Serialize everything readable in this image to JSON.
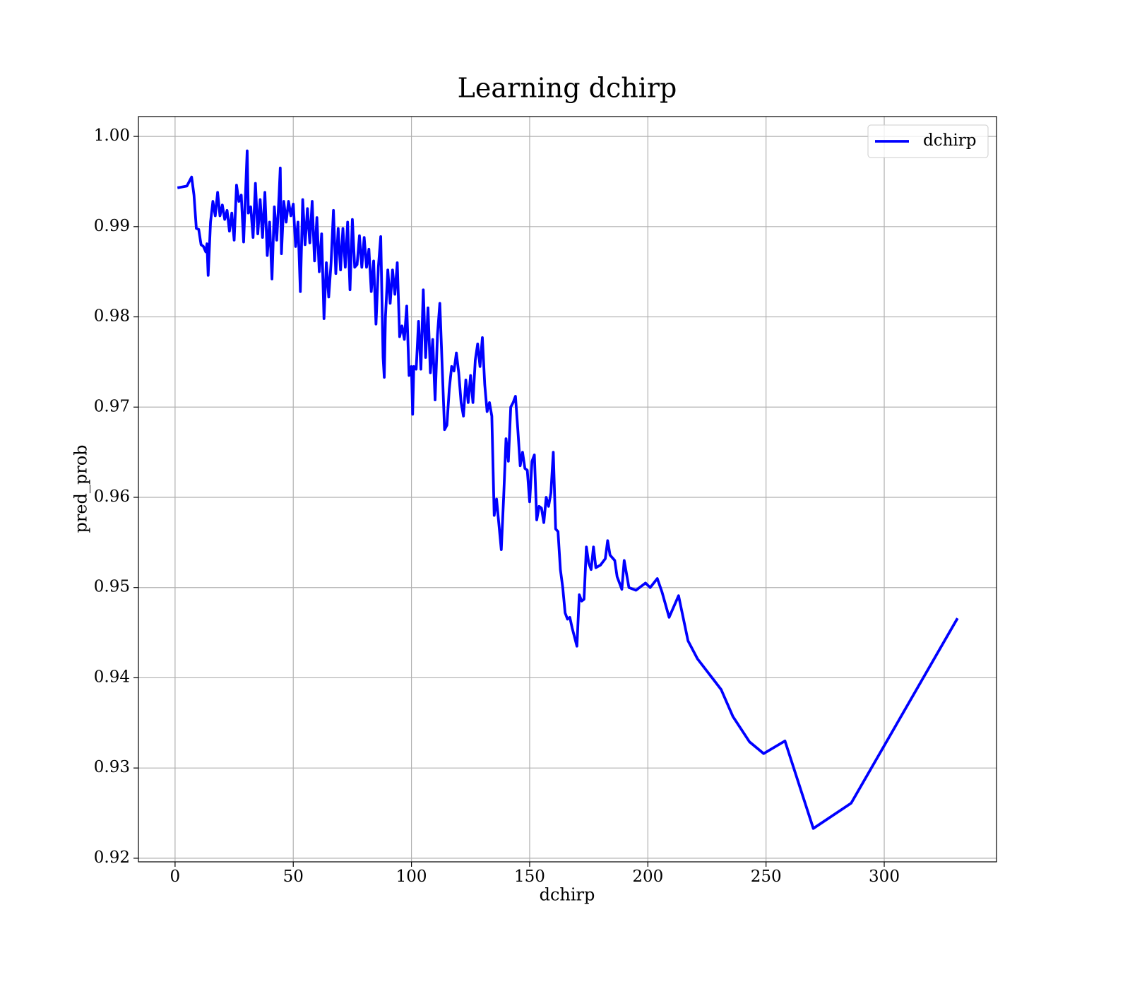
{
  "chart_data": {
    "type": "line",
    "title": "Learning dchirp",
    "xlabel": "dchirp",
    "ylabel": "pred_prob",
    "xlim": [
      -15.5,
      347.5
    ],
    "ylim": [
      0.9196,
      1.0022
    ],
    "xticks": [
      0,
      50,
      100,
      150,
      200,
      250,
      300
    ],
    "yticks": [
      0.92,
      0.93,
      0.94,
      0.95,
      0.96,
      0.97,
      0.98,
      0.99,
      {
        "value": 1,
        "label": "1.00"
      }
    ],
    "grid": true,
    "legend": "upper right",
    "series": [
      {
        "name": "dchirp",
        "color": "#0000ff",
        "x": [
          1,
          5,
          7,
          8,
          9,
          10,
          11,
          12,
          13,
          13.5,
          14,
          15,
          16,
          17,
          18,
          19,
          20,
          21,
          22,
          23,
          24,
          25,
          26,
          27,
          28,
          29,
          30,
          30.5,
          31,
          32,
          33,
          34,
          35,
          36,
          37,
          38,
          39,
          40,
          41,
          42,
          43,
          44,
          44.5,
          45,
          46,
          47,
          48,
          49,
          50,
          51,
          52,
          53,
          54,
          55,
          56,
          57,
          58,
          59,
          60,
          61,
          62,
          63,
          64,
          65,
          66,
          67,
          68,
          69,
          70,
          71,
          72,
          73,
          74,
          75,
          76,
          77,
          78,
          79,
          80,
          81,
          82,
          83,
          84,
          85,
          86,
          87,
          88,
          88.5,
          89,
          90,
          91,
          92,
          93,
          94,
          95,
          96,
          97,
          98,
          99,
          100,
          100.5,
          101,
          102,
          103,
          104,
          105,
          106,
          107,
          108,
          109,
          110,
          111,
          112,
          113,
          114,
          115,
          116,
          117,
          118,
          119,
          120,
          121,
          122,
          123,
          124,
          125,
          126,
          127,
          128,
          129,
          130,
          131,
          132,
          133,
          134,
          135,
          136,
          137,
          138,
          139,
          140,
          141,
          142,
          143,
          144,
          145,
          146,
          147,
          148,
          149,
          150,
          151,
          152,
          153,
          154,
          155,
          156,
          157,
          158,
          159,
          160,
          161,
          162,
          163,
          164,
          165,
          166,
          167,
          168,
          170,
          171,
          172,
          173,
          174,
          175,
          176,
          177,
          178,
          180,
          182,
          183,
          184,
          186,
          187,
          189,
          190,
          192,
          195,
          199,
          201,
          204,
          206,
          209,
          213,
          217,
          221,
          231,
          236,
          243,
          249,
          258,
          270,
          286,
          331
        ],
        "values": [
          0.9943,
          0.9945,
          0.9955,
          0.9935,
          0.9898,
          0.9897,
          0.988,
          0.9878,
          0.9872,
          0.9881,
          0.9846,
          0.9905,
          0.9928,
          0.9912,
          0.9938,
          0.9912,
          0.9924,
          0.9908,
          0.9918,
          0.9895,
          0.9915,
          0.9885,
          0.9946,
          0.9928,
          0.9935,
          0.9883,
          0.995,
          0.9984,
          0.9915,
          0.9922,
          0.9888,
          0.9948,
          0.9892,
          0.993,
          0.9888,
          0.9938,
          0.9868,
          0.9905,
          0.9842,
          0.9922,
          0.9885,
          0.9935,
          0.9965,
          0.987,
          0.9928,
          0.9905,
          0.9928,
          0.9912,
          0.9925,
          0.9878,
          0.9905,
          0.9828,
          0.993,
          0.988,
          0.992,
          0.9882,
          0.9928,
          0.9862,
          0.991,
          0.985,
          0.9892,
          0.9798,
          0.986,
          0.9822,
          0.986,
          0.9918,
          0.9848,
          0.9898,
          0.9852,
          0.9898,
          0.9855,
          0.9905,
          0.983,
          0.9908,
          0.9855,
          0.9858,
          0.989,
          0.9855,
          0.9888,
          0.9855,
          0.9875,
          0.9828,
          0.9862,
          0.9792,
          0.9855,
          0.9889,
          0.9755,
          0.9733,
          0.98,
          0.9852,
          0.9815,
          0.9852,
          0.9825,
          0.986,
          0.9778,
          0.979,
          0.9775,
          0.9812,
          0.9735,
          0.9745,
          0.9692,
          0.9745,
          0.9742,
          0.9795,
          0.9742,
          0.983,
          0.9755,
          0.981,
          0.9738,
          0.9775,
          0.9708,
          0.978,
          0.9815,
          0.9745,
          0.9675,
          0.968,
          0.972,
          0.9745,
          0.974,
          0.976,
          0.9738,
          0.9705,
          0.969,
          0.973,
          0.9705,
          0.9735,
          0.9705,
          0.9752,
          0.977,
          0.9745,
          0.9777,
          0.9725,
          0.9695,
          0.9705,
          0.969,
          0.958,
          0.9598,
          0.957,
          0.9542,
          0.96,
          0.9665,
          0.964,
          0.97,
          0.9705,
          0.9712,
          0.9675,
          0.9635,
          0.965,
          0.9632,
          0.963,
          0.9595,
          0.964,
          0.9647,
          0.9575,
          0.959,
          0.9588,
          0.9572,
          0.96,
          0.959,
          0.9605,
          0.965,
          0.9565,
          0.9562,
          0.952,
          0.95,
          0.9472,
          0.9465,
          0.9467,
          0.9455,
          0.9435,
          0.9492,
          0.9485,
          0.9487,
          0.9545,
          0.9527,
          0.952,
          0.9545,
          0.9522,
          0.9525,
          0.9532,
          0.9552,
          0.9536,
          0.953,
          0.9512,
          0.9498,
          0.953,
          0.95,
          0.9497,
          0.9505,
          0.95,
          0.951,
          0.9495,
          0.9467,
          0.9491,
          0.9441,
          0.9421,
          0.9387,
          0.9357,
          0.9329,
          0.9316,
          0.933,
          0.9233,
          0.9261,
          0.9466
        ]
      }
    ]
  }
}
